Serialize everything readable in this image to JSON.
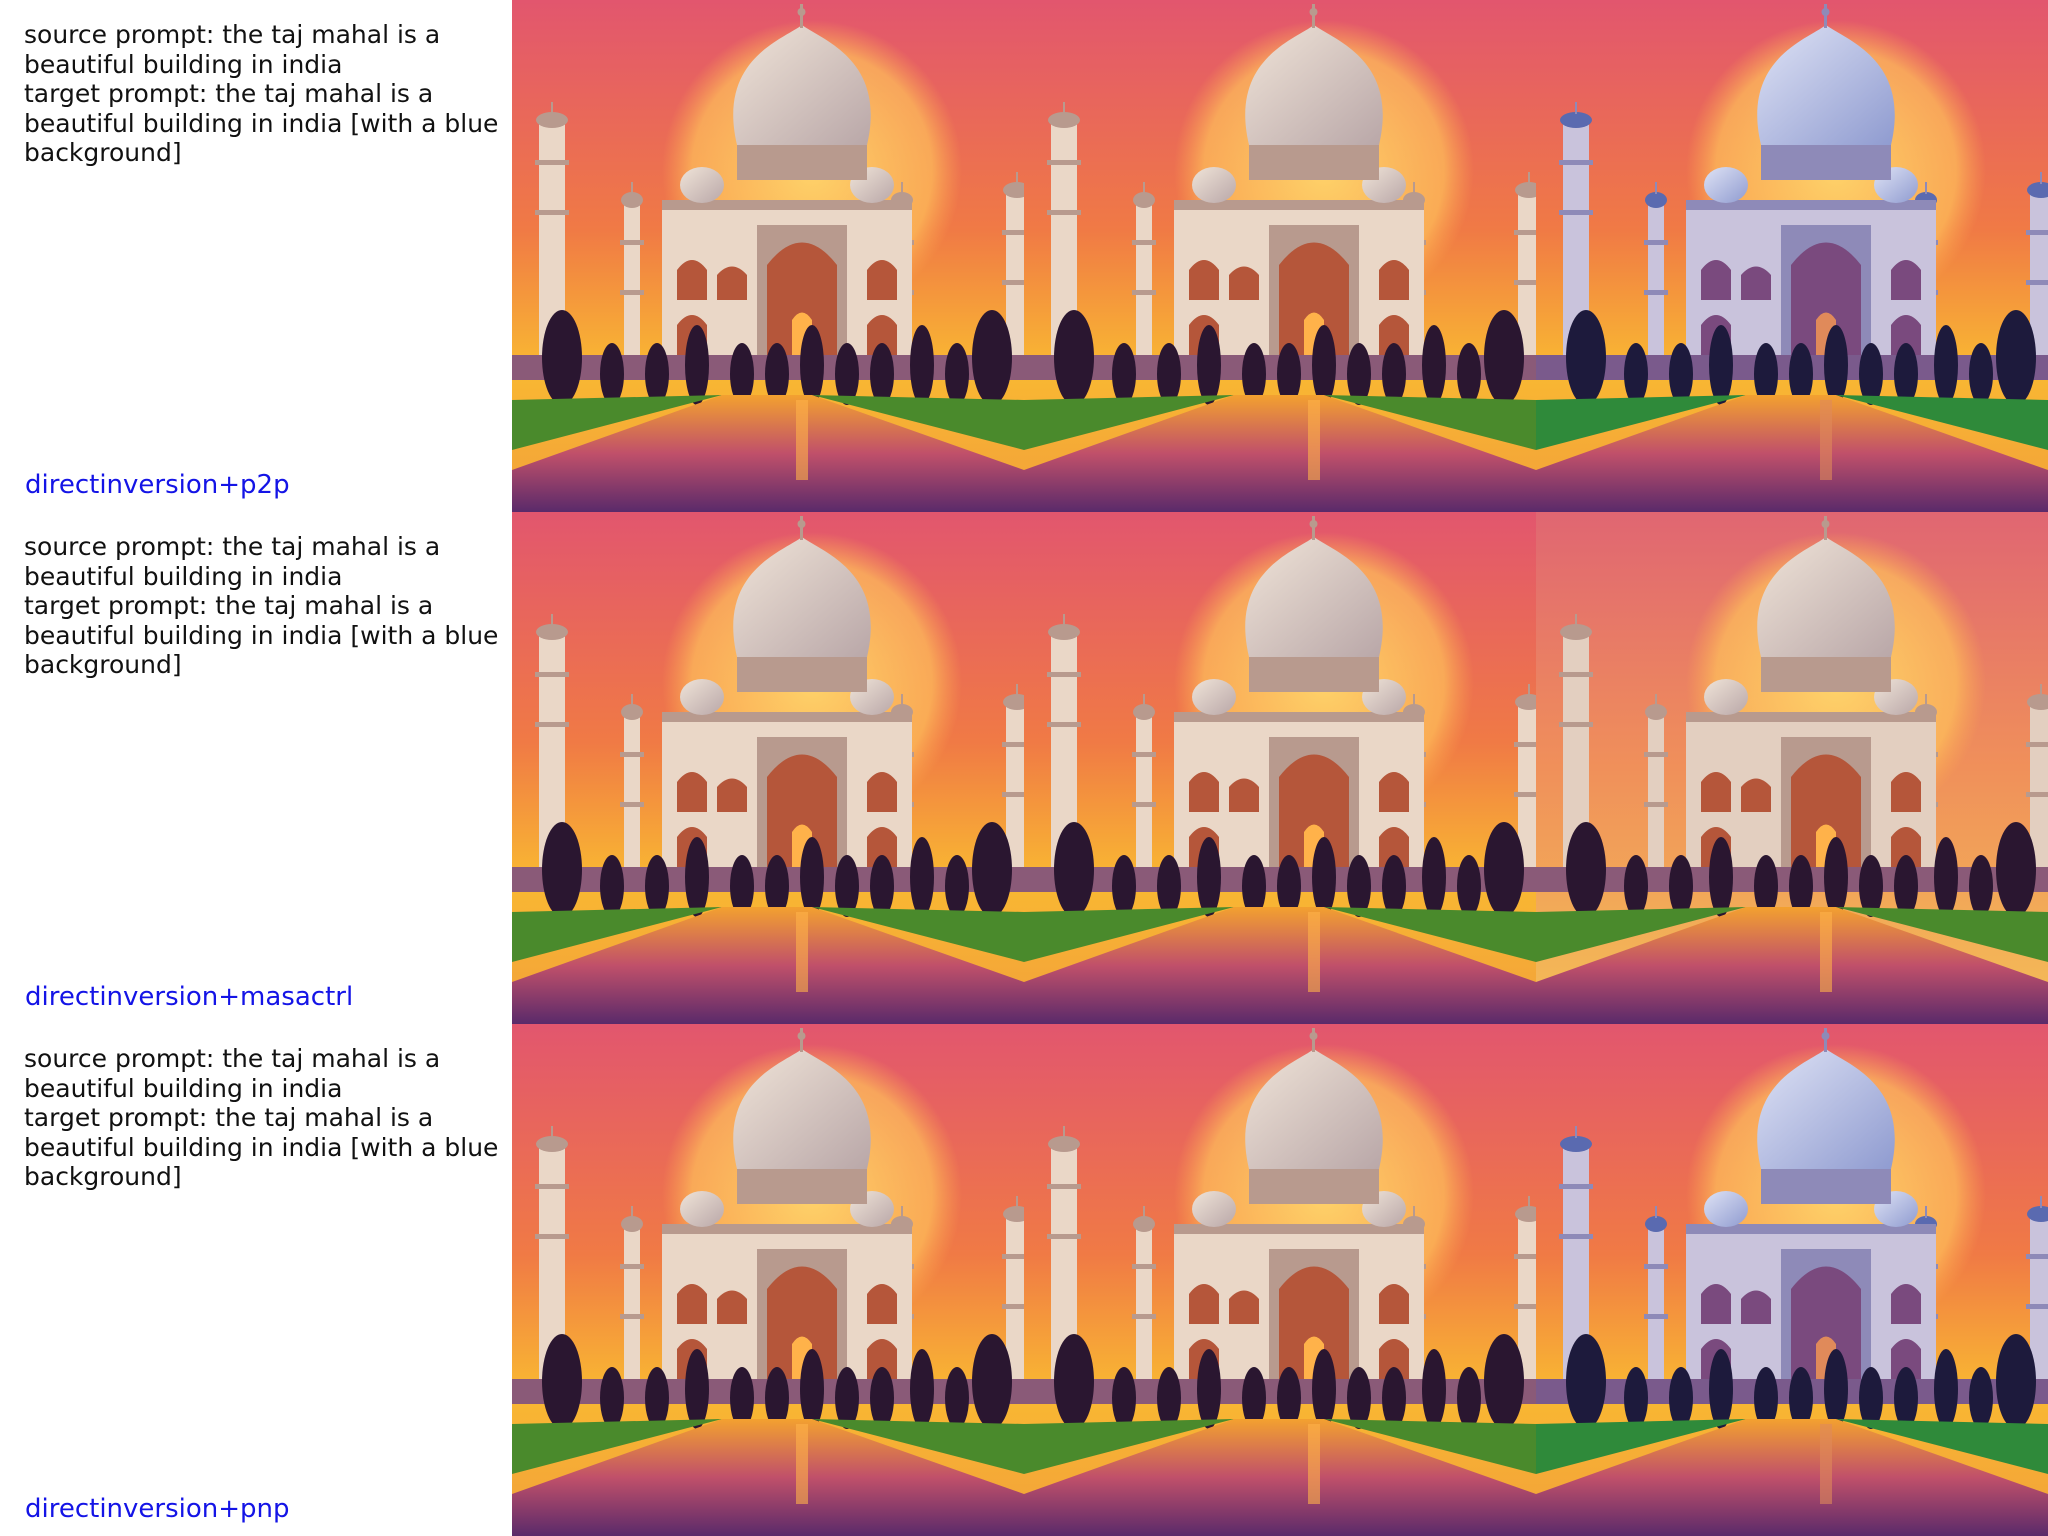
{
  "rows": [
    {
      "source_prompt": "source prompt: the taj mahal is a beautiful building in india",
      "target_prompt": "target prompt: the taj mahal is a beautiful building in india [with a blue background]",
      "method": "directinversion+p2p",
      "images": [
        "taj-mahal-sunset-icon",
        "taj-mahal-sunset-icon",
        "taj-mahal-edited-blue-tint-icon"
      ]
    },
    {
      "source_prompt": "source prompt: the taj mahal is a beautiful building in india",
      "target_prompt": "target prompt: the taj mahal is a beautiful building in india [with a blue background]",
      "method": "directinversion+masactrl",
      "images": [
        "taj-mahal-sunset-icon",
        "taj-mahal-sunset-icon",
        "taj-mahal-muted-icon"
      ]
    },
    {
      "source_prompt": "source prompt: the taj mahal is a beautiful building in india",
      "target_prompt": "target prompt: the taj mahal is a beautiful building in india [with a blue background]",
      "method": "directinversion+pnp",
      "images": [
        "taj-mahal-sunset-icon",
        "taj-mahal-sunset-icon",
        "taj-mahal-edited-blue-tint-icon"
      ]
    }
  ],
  "colors": {
    "method_label": "#1414e6",
    "sky_top": "#e8566b",
    "sky_bottom": "#f7b63a",
    "blue_dome": "#a9b6e3"
  }
}
